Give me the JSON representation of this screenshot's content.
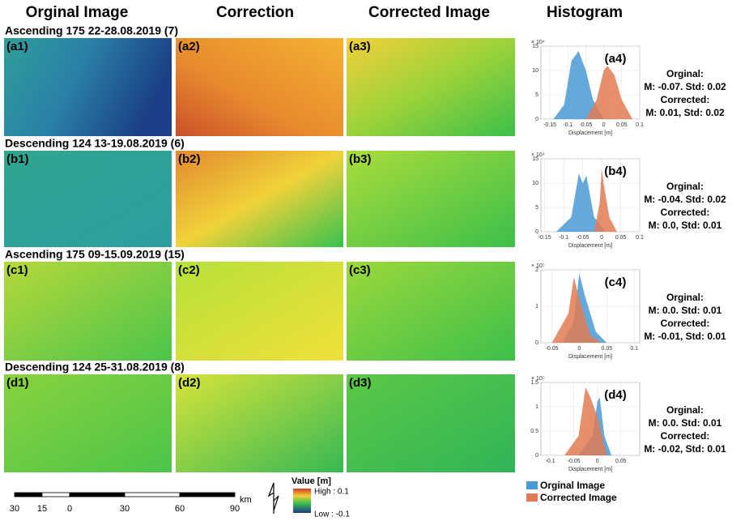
{
  "column_headers": [
    "Orginal Image",
    "Correction",
    "Corrected Image",
    "Histogram"
  ],
  "rows": [
    {
      "title": "Ascending 175 22-28.08.2019 (7)",
      "panels": [
        "(a1)",
        "(a2)",
        "(a3)"
      ],
      "histogram": {
        "label": "(a4)",
        "y_scale": "× 10⁴",
        "xlabel": "Displacement [m]",
        "xlim": [
          -0.175,
          0.1
        ],
        "xticks": [
          -0.15,
          -0.1,
          -0.05,
          0,
          0.05,
          0.1
        ],
        "ylim": [
          0,
          15
        ],
        "yticks": [
          0,
          5,
          10,
          15
        ],
        "series": [
          {
            "color": "#4a9ad6",
            "x": [
              -0.14,
              -0.11,
              -0.09,
              -0.07,
              -0.05,
              -0.03,
              0
            ],
            "values": [
              0,
              3,
              12,
              14,
              10,
              4,
              0
            ]
          },
          {
            "color": "#e07b53",
            "x": [
              -0.05,
              -0.02,
              0,
              0.01,
              0.03,
              0.05,
              0.08
            ],
            "values": [
              0,
              4,
              10,
              11,
              9,
              4,
              0
            ]
          }
        ],
        "stats": [
          "Orginal:",
          "M: -0.07. Std: 0.02",
          "Corrected:",
          "M: 0.01, Std: 0.02"
        ]
      }
    },
    {
      "title": "Descending 124 13-19.08.2019 (6)",
      "panels": [
        "(b1)",
        "(b2)",
        "(b3)"
      ],
      "histogram": {
        "label": "(b4)",
        "y_scale": "× 10⁴",
        "xlabel": "Displacement [m]",
        "xlim": [
          -0.16,
          0.1
        ],
        "xticks": [
          -0.15,
          -0.1,
          -0.05,
          0,
          0.05,
          0.1
        ],
        "ylim": [
          0,
          15
        ],
        "yticks": [
          0,
          5,
          10,
          15
        ],
        "series": [
          {
            "color": "#4a9ad6",
            "x": [
              -0.12,
              -0.08,
              -0.06,
              -0.05,
              -0.04,
              -0.02,
              0.01
            ],
            "values": [
              0,
              3,
              12,
              10,
              11.5,
              3,
              0
            ]
          },
          {
            "color": "#e07b53",
            "x": [
              -0.02,
              -0.005,
              0,
              0.005,
              0.02,
              0.04
            ],
            "values": [
              0,
              6,
              13,
              10,
              3,
              0
            ]
          }
        ],
        "stats": [
          "Orginal:",
          "M: -0.04. Std: 0.02",
          "Corrected:",
          "M: 0.0, Std: 0.01"
        ]
      }
    },
    {
      "title": "Ascending 175 09-15.09.2019 (15)",
      "panels": [
        "(c1)",
        "(c2)",
        "(c3)"
      ],
      "histogram": {
        "label": "(c4)",
        "y_scale": "× 10⁵",
        "xlabel": "Displacement [m]",
        "xlim": [
          -0.07,
          0.11
        ],
        "xticks": [
          -0.05,
          0,
          0.05,
          0.1
        ],
        "ylim": [
          0,
          2
        ],
        "yticks": [
          0,
          1,
          2
        ],
        "series": [
          {
            "color": "#4a9ad6",
            "x": [
              -0.03,
              -0.01,
              0,
              0.01,
              0.03,
              0.05
            ],
            "values": [
              0,
              0.6,
              1.9,
              1.3,
              0.3,
              0
            ]
          },
          {
            "color": "#e07b53",
            "x": [
              -0.05,
              -0.02,
              -0.01,
              0,
              0.02,
              0.04
            ],
            "values": [
              0,
              0.8,
              1.8,
              1.2,
              0.2,
              0
            ]
          }
        ],
        "stats": [
          "Orginal:",
          "M: 0.0. Std: 0.01",
          "Corrected:",
          "M: -0.01, Std: 0.01"
        ]
      }
    },
    {
      "title": "Descending 124 25-31.08.2019 (8)",
      "panels": [
        "(d1)",
        "(d2)",
        "(d3)"
      ],
      "histogram": {
        "label": "(d4)",
        "y_scale": "× 10⁵",
        "xlabel": "Displacement [m]",
        "xlim": [
          -0.12,
          0.09
        ],
        "xticks": [
          -0.1,
          -0.05,
          0,
          0.05
        ],
        "ylim": [
          0,
          1.5
        ],
        "yticks": [
          0,
          0.5,
          1,
          1.5
        ],
        "series": [
          {
            "color": "#4a9ad6",
            "x": [
              -0.04,
              -0.01,
              0,
              0.005,
              0.015,
              0.03
            ],
            "values": [
              0,
              0.4,
              1.1,
              1.2,
              0.4,
              0
            ]
          },
          {
            "color": "#e07b53",
            "x": [
              -0.07,
              -0.04,
              -0.025,
              -0.015,
              0,
              0.02
            ],
            "values": [
              0,
              0.4,
              1.4,
              1.2,
              0.8,
              0
            ]
          }
        ],
        "stats": [
          "Orginal:",
          "M: 0.0. Std: 0.01",
          "Corrected:",
          "M: -0.02, Std: 0.01"
        ]
      }
    }
  ],
  "histogram_legend": [
    {
      "name": "Orginal Image",
      "color": "#4a9ad6"
    },
    {
      "name": "Corrected Image",
      "color": "#e07b53"
    }
  ],
  "scale_bar": {
    "labels": [
      "30",
      "15",
      "0",
      "30",
      "60",
      "90"
    ],
    "unit": "km"
  },
  "color_legend": {
    "title": "Value [m]",
    "high": "High : 0.1",
    "low": "Low : -0.1"
  }
}
